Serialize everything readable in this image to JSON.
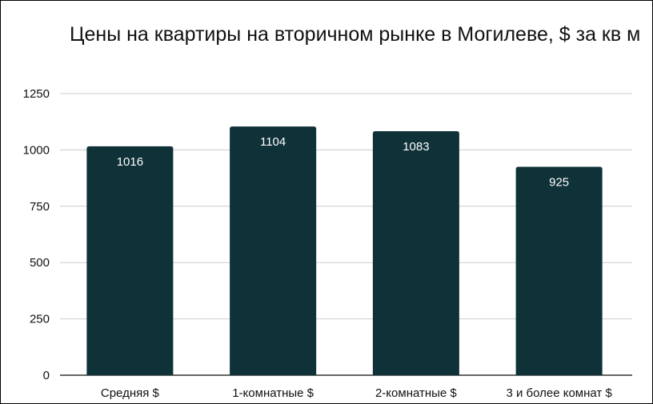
{
  "chart_data": {
    "type": "bar",
    "title": "Цены на квартиры на вторичном рынке в Могилеве, $ за кв м",
    "categories": [
      "Средняя $",
      "1-комнатные $",
      "2-комнатные $",
      "3 и более комнат $"
    ],
    "values": [
      1016,
      1104,
      1083,
      925
    ],
    "ylim": [
      0,
      1250
    ],
    "yticks": [
      0,
      250,
      500,
      750,
      1000,
      1250
    ],
    "grid": true,
    "bar_color": "#0f3138",
    "data_labels": true
  }
}
